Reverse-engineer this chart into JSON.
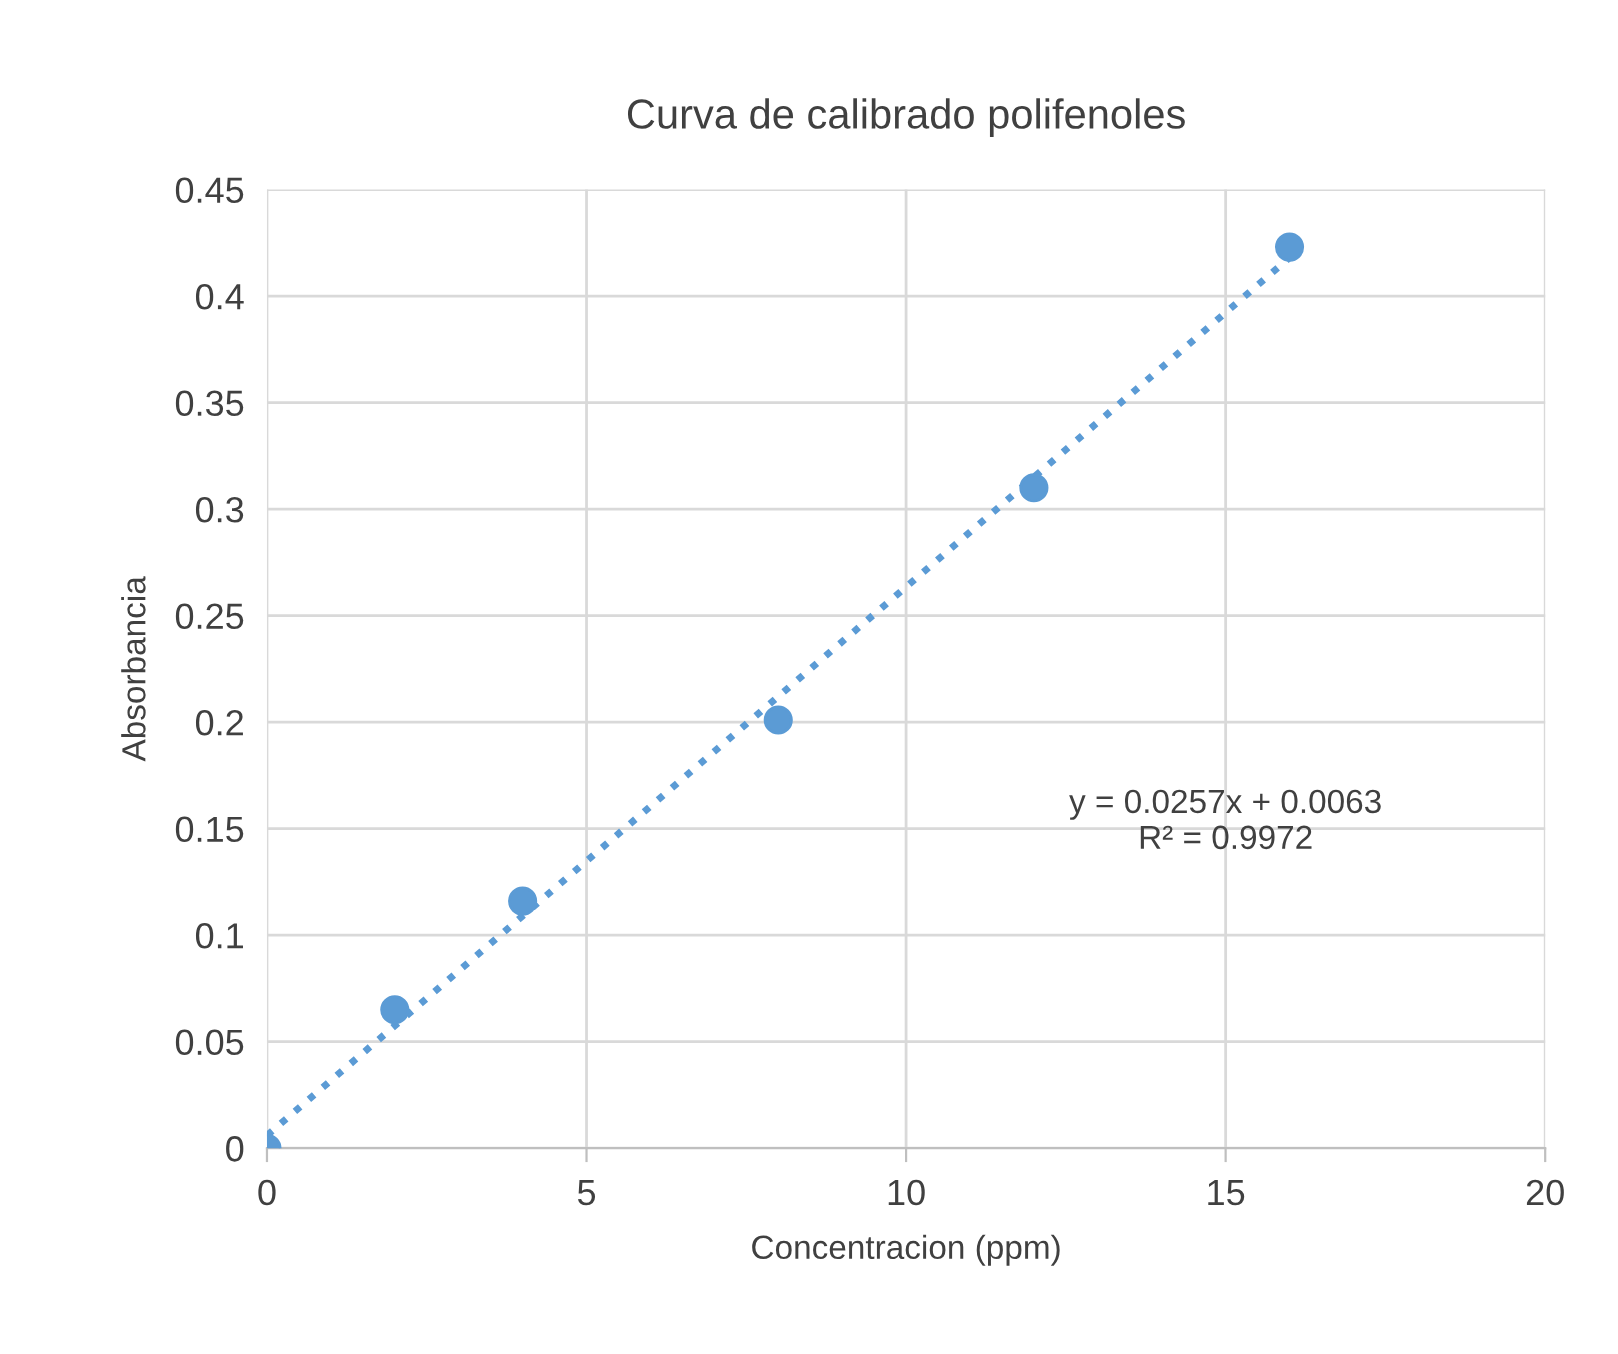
{
  "chart_data": {
    "type": "scatter",
    "title": "Curva de calibrado polifenoles",
    "xlabel": "Concentracion (ppm)",
    "ylabel": "Absorbancia",
    "x": [
      0,
      2,
      4,
      8,
      12,
      16
    ],
    "series": [
      {
        "color": "#5b9bd5",
        "values": [
          0,
          0.065,
          0.116,
          0.201,
          0.31,
          0.423
        ],
        "marker": "circle"
      },
      {
        "type": "line",
        "color": "#5b9bd5",
        "x": [
          0,
          16
        ],
        "values": [
          0.006,
          0.418
        ],
        "line_style": "dotted",
        "marker": "none"
      }
    ],
    "annotations": [
      "y = 0.0257x + 0.0063\nR² = 0.9972"
    ],
    "xlim": [
      0,
      20
    ],
    "xticks": [
      0,
      5,
      10,
      15,
      20
    ],
    "ylim": [
      0,
      0.45
    ],
    "yticks": [
      0,
      0.05,
      0.1,
      0.15,
      0.2,
      0.25,
      0.3,
      0.35,
      0.4,
      0.45
    ],
    "grid": true,
    "legend": false
  }
}
